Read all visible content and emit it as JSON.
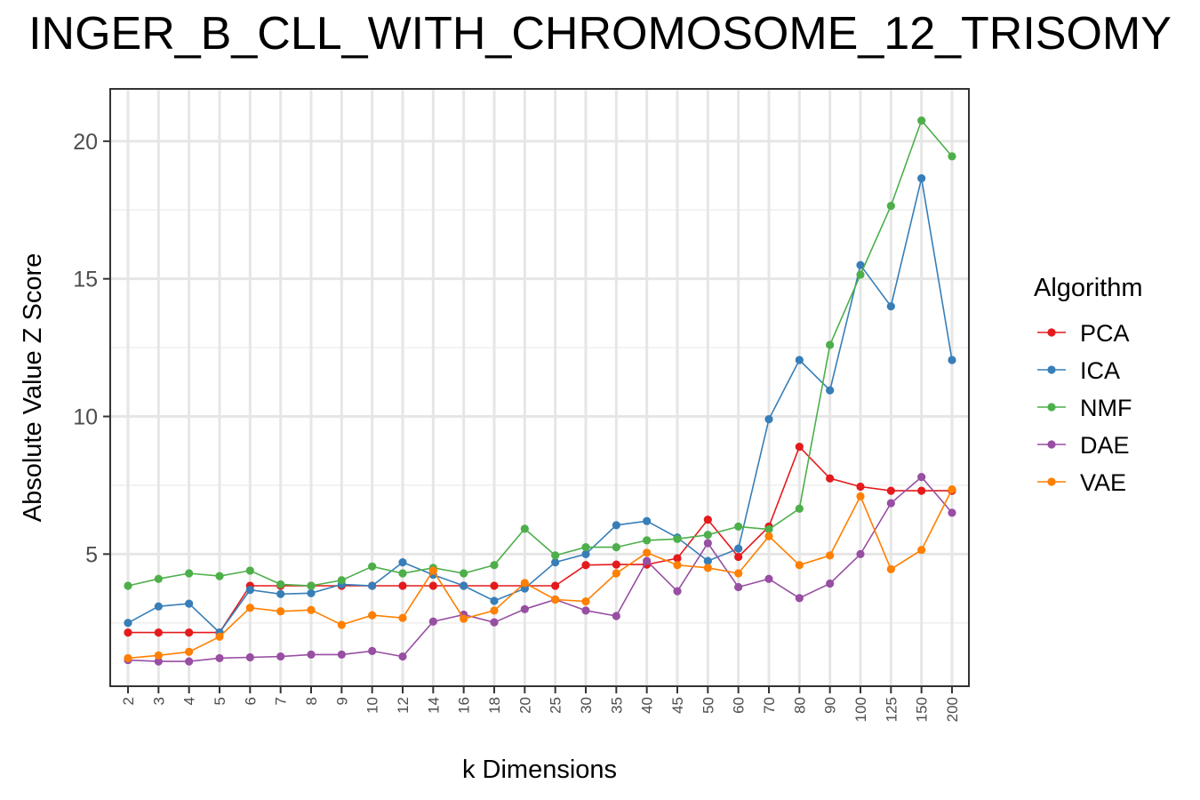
{
  "chart_data": {
    "type": "line",
    "title": "INGER_B_CLL_WITH_CHROMOSOME_12_TRISOMY",
    "xlabel": "k Dimensions",
    "ylabel": "Absolute Value Z Score",
    "categories": [
      "2",
      "3",
      "4",
      "5",
      "6",
      "7",
      "8",
      "9",
      "10",
      "12",
      "14",
      "16",
      "18",
      "20",
      "25",
      "30",
      "35",
      "40",
      "45",
      "50",
      "60",
      "70",
      "80",
      "90",
      "100",
      "125",
      "150",
      "200"
    ],
    "yticks": [
      5,
      10,
      15,
      20
    ],
    "ylim": [
      0.2,
      21.9
    ],
    "grid": true,
    "legend": {
      "title": "Algorithm",
      "placement": "right"
    },
    "series": [
      {
        "name": "PCA",
        "color": "#E41A1C",
        "values": [
          2.15,
          2.15,
          2.15,
          2.15,
          3.85,
          3.85,
          3.85,
          3.85,
          3.85,
          3.85,
          3.85,
          3.85,
          3.85,
          3.85,
          3.85,
          4.6,
          4.62,
          4.62,
          4.85,
          6.25,
          4.9,
          6.0,
          8.9,
          7.75,
          7.45,
          7.3,
          7.3,
          7.3
        ]
      },
      {
        "name": "ICA",
        "color": "#377EB8",
        "values": [
          2.5,
          3.1,
          3.2,
          2.15,
          3.7,
          3.55,
          3.58,
          3.9,
          3.85,
          4.7,
          4.25,
          3.85,
          3.3,
          3.75,
          4.7,
          5.0,
          6.05,
          6.2,
          5.6,
          4.75,
          5.2,
          9.9,
          12.05,
          10.95,
          15.5,
          14.0,
          18.65,
          12.05
        ]
      },
      {
        "name": "NMF",
        "color": "#4DAF4A",
        "values": [
          3.85,
          4.1,
          4.3,
          4.2,
          4.4,
          3.9,
          3.85,
          4.05,
          4.55,
          4.3,
          4.5,
          4.3,
          4.6,
          5.92,
          4.95,
          5.25,
          5.25,
          5.5,
          5.55,
          5.7,
          6.0,
          5.9,
          6.65,
          12.6,
          15.15,
          17.65,
          20.75,
          19.45
        ]
      },
      {
        "name": "DAE",
        "color": "#984EA3",
        "values": [
          1.15,
          1.1,
          1.1,
          1.22,
          1.25,
          1.28,
          1.35,
          1.35,
          1.48,
          1.28,
          2.55,
          2.8,
          2.52,
          3.0,
          3.35,
          2.95,
          2.75,
          4.75,
          3.65,
          5.4,
          3.8,
          4.1,
          3.4,
          3.93,
          5.0,
          6.85,
          7.8,
          6.5
        ]
      },
      {
        "name": "VAE",
        "color": "#FF7F00",
        "values": [
          1.22,
          1.32,
          1.45,
          2.0,
          3.05,
          2.92,
          2.97,
          2.43,
          2.78,
          2.68,
          4.4,
          2.65,
          2.95,
          3.95,
          3.35,
          3.28,
          4.3,
          5.05,
          4.6,
          4.5,
          4.3,
          5.65,
          4.6,
          4.95,
          7.1,
          4.45,
          5.15,
          7.35
        ]
      }
    ]
  }
}
